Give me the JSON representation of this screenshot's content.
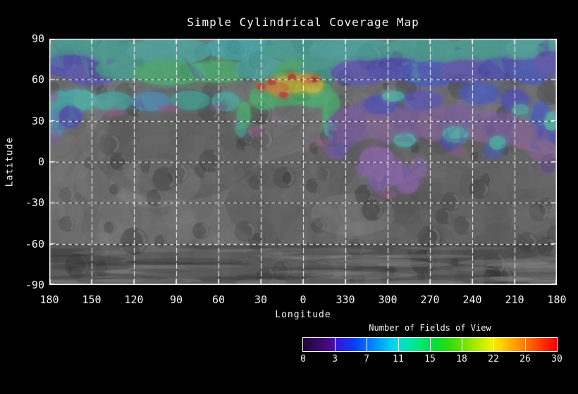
{
  "page": {
    "background": "#000000",
    "text_color": "#f5f5f5"
  },
  "title": "Simple Cylindrical Coverage Map",
  "axes": {
    "x": {
      "label": "Longitude",
      "tick_labels": [
        "180",
        "150",
        "120",
        "90",
        "60",
        "30",
        "0",
        "330",
        "300",
        "270",
        "240",
        "210",
        "180"
      ]
    },
    "y": {
      "label": "Latitude",
      "tick_labels": [
        "90",
        "60",
        "30",
        "0",
        "-30",
        "-60",
        "-90"
      ]
    }
  },
  "colorbar": {
    "title": "Number of Fields of View",
    "tick_labels": [
      "0",
      "3",
      "7",
      "11",
      "15",
      "18",
      "22",
      "26",
      "30"
    ],
    "segments": 8,
    "gradient_stops": [
      {
        "p": 0,
        "c": "#200538"
      },
      {
        "p": 11,
        "c": "#4c0b8c"
      },
      {
        "p": 13,
        "c": "#3517d6"
      },
      {
        "p": 20,
        "c": "#0b3cf2"
      },
      {
        "p": 25,
        "c": "#0070ff"
      },
      {
        "p": 31,
        "c": "#00aaff"
      },
      {
        "p": 36,
        "c": "#00d8ea"
      },
      {
        "p": 41,
        "c": "#00e6b2"
      },
      {
        "p": 47,
        "c": "#00e470"
      },
      {
        "p": 52,
        "c": "#06df38"
      },
      {
        "p": 57,
        "c": "#2edb10"
      },
      {
        "p": 62.5,
        "c": "#66e000"
      },
      {
        "p": 68,
        "c": "#a8ea00"
      },
      {
        "p": 74,
        "c": "#eef200"
      },
      {
        "p": 78,
        "c": "#ffd400"
      },
      {
        "p": 84,
        "c": "#ff9900"
      },
      {
        "p": 89,
        "c": "#ff6a00"
      },
      {
        "p": 94,
        "c": "#ff3300"
      },
      {
        "p": 100,
        "c": "#fb0000"
      }
    ]
  },
  "map": {
    "projection": "simple cylindrical",
    "grid_spacing_deg": 30,
    "gridline_color": "#ffffff",
    "frame_color": "#ffffff",
    "terrain_base_color": "#6d6d6d",
    "overlay_alpha": 0.62,
    "palette": {
      "teal": "#3cb4a4",
      "teal2": "#46bcb4",
      "cyan": "#3fc4c4",
      "cyan2": "#49ccc0",
      "cyanblue": "#4b9ed0",
      "green": "#41c472",
      "blue": "#4747cc",
      "blue2": "#4156d8",
      "indigo": "#5b51cc",
      "purple": "#7c58ac",
      "purpleM": "#8c64a0",
      "purpleblob": "#9a66c6",
      "mag": "#a85a9a",
      "yellow": "#e6df35",
      "orange": "#f09a2c",
      "red": "#e23222"
    }
  },
  "chart_data": {
    "type": "heatmap",
    "title": "Simple Cylindrical Coverage Map",
    "xlabel": "Longitude",
    "ylabel": "Latitude",
    "x_ticks_deg": [
      180,
      150,
      120,
      90,
      60,
      30,
      0,
      330,
      300,
      270,
      240,
      210,
      180
    ],
    "y_ticks_deg": [
      90,
      60,
      30,
      0,
      -30,
      -60,
      -90
    ],
    "grid": "dashed white lines every 30 degrees",
    "legend": {
      "label": "Number of Fields of View",
      "ticks": [
        0,
        3,
        7,
        11,
        15,
        18,
        22,
        26,
        30
      ],
      "palette": "rainbow"
    },
    "coverage_summary": [
      {
        "lat": "60..90",
        "lon": "all",
        "fov": "7-15",
        "appearance": "teal/cyan band with blue, indigo and green mosaic patches"
      },
      {
        "lat": "25..60",
        "lon": "180..45 (west)",
        "fov": "8-13",
        "appearance": "cyan/blue coverage above uncovered gray dome"
      },
      {
        "lat": "40..62",
        "lon": "35..340",
        "fov": "18-30",
        "appearance": "yellow-orange-red hotspot with green halo and two descending arms around a gray gap"
      },
      {
        "lat": "0..55",
        "lon": "345..185 (east)",
        "fov": "1-8",
        "appearance": "purple/violet field with blue and cyan patches"
      },
      {
        "lat": "-30..0",
        "lon": "320..275",
        "fov": "1-3",
        "appearance": "purple blob extending south of the equator"
      },
      {
        "lat": "-90..0 elsewhere",
        "lon": "all",
        "fov": 0,
        "appearance": "uncovered grayscale terrain with craters and streaks"
      }
    ],
    "coverage_blobs": [
      [
        150,
        82,
        35,
        10,
        "teal"
      ],
      [
        95,
        81,
        30,
        10,
        "teal2"
      ],
      [
        40,
        83,
        30,
        9,
        "cyan"
      ],
      [
        0,
        82,
        28,
        9,
        "teal"
      ],
      [
        325,
        82,
        30,
        9,
        "teal2"
      ],
      [
        275,
        81,
        30,
        10,
        "teal"
      ],
      [
        230,
        82,
        28,
        9,
        "teal"
      ],
      [
        195,
        83,
        22,
        9,
        "teal2"
      ],
      [
        165,
        70,
        20,
        8,
        "blue"
      ],
      [
        150,
        64,
        18,
        8,
        "indigo"
      ],
      [
        125,
        68,
        22,
        8,
        "teal"
      ],
      [
        95,
        65,
        25,
        9,
        "green"
      ],
      [
        60,
        66,
        22,
        8,
        "green"
      ],
      [
        30,
        68,
        18,
        8,
        "teal2"
      ],
      [
        5,
        66,
        15,
        8,
        "green"
      ],
      [
        345,
        67,
        18,
        8,
        "teal"
      ],
      [
        320,
        65,
        20,
        9,
        "indigo"
      ],
      [
        295,
        68,
        20,
        8,
        "blue"
      ],
      [
        270,
        64,
        20,
        9,
        "blue2"
      ],
      [
        245,
        66,
        18,
        8,
        "indigo"
      ],
      [
        220,
        68,
        16,
        8,
        "blue"
      ],
      [
        198,
        66,
        14,
        9,
        "blue2"
      ],
      [
        186,
        72,
        10,
        9,
        "indigo"
      ],
      [
        160,
        45,
        12,
        8,
        "cyan"
      ],
      [
        135,
        44,
        14,
        7,
        "teal2"
      ],
      [
        108,
        44,
        14,
        7,
        "cyanblue"
      ],
      [
        80,
        45,
        14,
        7,
        "teal"
      ],
      [
        55,
        44,
        10,
        7,
        "teal2"
      ],
      [
        172,
        40,
        10,
        12,
        "cyan"
      ],
      [
        176,
        28,
        7,
        9,
        "cyanblue"
      ],
      [
        165,
        33,
        8,
        8,
        "blue"
      ],
      [
        155,
        45,
        8,
        7,
        "cyan2"
      ],
      [
        178,
        18,
        5,
        6,
        "purple",
        0.5
      ],
      [
        42,
        34,
        5,
        10,
        "green"
      ],
      [
        44,
        24,
        4,
        6,
        "teal2",
        0.7
      ],
      [
        12,
        52,
        22,
        11,
        "green"
      ],
      [
        28,
        47,
        10,
        9,
        "green"
      ],
      [
        352,
        50,
        13,
        10,
        "green"
      ],
      [
        340,
        42,
        6,
        9,
        "green"
      ],
      [
        8,
        57,
        14,
        6,
        "yellow"
      ],
      [
        354,
        56,
        8,
        5,
        "yellow"
      ],
      [
        18,
        54,
        8,
        4,
        "orange"
      ],
      [
        357,
        60,
        6,
        3,
        "orange"
      ],
      [
        22,
        58,
        3,
        2,
        "red"
      ],
      [
        8,
        62,
        3,
        2,
        "red"
      ],
      [
        352,
        60,
        3,
        2,
        "red"
      ],
      [
        14,
        49,
        3,
        2,
        "red"
      ],
      [
        30,
        55,
        3,
        2,
        "red"
      ],
      [
        342,
        32,
        4,
        9,
        "green"
      ],
      [
        341,
        23,
        4,
        5,
        "cyan2"
      ],
      [
        330,
        25,
        12,
        14,
        "purple"
      ],
      [
        318,
        30,
        14,
        13,
        "purple"
      ],
      [
        300,
        28,
        16,
        14,
        "purpleM"
      ],
      [
        282,
        30,
        14,
        13,
        "purple"
      ],
      [
        265,
        28,
        14,
        13,
        "purpleM"
      ],
      [
        248,
        30,
        13,
        12,
        "purple"
      ],
      [
        232,
        26,
        12,
        12,
        "purpleM"
      ],
      [
        218,
        24,
        12,
        12,
        "purple"
      ],
      [
        200,
        22,
        12,
        12,
        "purpleM"
      ],
      [
        188,
        18,
        8,
        11,
        "purple"
      ],
      [
        336,
        10,
        8,
        8,
        "purple"
      ],
      [
        305,
        42,
        12,
        7,
        "blue"
      ],
      [
        275,
        45,
        14,
        7,
        "indigo"
      ],
      [
        235,
        50,
        14,
        8,
        "blue2"
      ],
      [
        210,
        45,
        10,
        8,
        "blue"
      ],
      [
        192,
        35,
        7,
        9,
        "blue2"
      ],
      [
        255,
        15,
        8,
        7,
        "blue",
        0.6
      ],
      [
        225,
        8,
        7,
        6,
        "blue2",
        0.5
      ],
      [
        185,
        20,
        8,
        12,
        "blue"
      ],
      [
        288,
        16,
        8,
        5,
        "cyan2"
      ],
      [
        252,
        20,
        9,
        6,
        "cyan2"
      ],
      [
        222,
        14,
        6,
        5,
        "cyan2"
      ],
      [
        206,
        38,
        6,
        4,
        "teal2"
      ],
      [
        184,
        28,
        5,
        5,
        "cyan2"
      ],
      [
        296,
        48,
        8,
        4,
        "cyan2"
      ],
      [
        182,
        33,
        5,
        4,
        "cyan2"
      ],
      [
        308,
        2,
        12,
        9,
        "purpleblob"
      ],
      [
        296,
        -8,
        11,
        9,
        "purpleblob"
      ],
      [
        286,
        -16,
        8,
        7,
        "purpleblob"
      ],
      [
        306,
        -14,
        8,
        7,
        "purpleblob",
        0.7
      ],
      [
        316,
        -5,
        6,
        6,
        "purpleblob",
        0.6
      ],
      [
        278,
        -5,
        6,
        8,
        "purpleblob",
        0.55
      ],
      [
        186,
        -3,
        7,
        6,
        "purple",
        0.5
      ],
      [
        190,
        8,
        10,
        8,
        "purpleM"
      ],
      [
        134,
        36,
        7,
        3,
        "mag",
        0.5
      ],
      [
        95,
        39,
        8,
        3,
        "mag",
        0.45
      ],
      [
        60,
        40,
        6,
        3,
        "mag",
        0.4
      ],
      [
        35,
        22,
        5,
        4,
        "mag",
        0.5
      ],
      [
        347,
        14,
        5,
        3,
        "mag",
        0.5
      ],
      [
        300,
        -24,
        7,
        3,
        "mag",
        0.45
      ],
      [
        250,
        8,
        6,
        3,
        "mag",
        0.4
      ],
      [
        205,
        12,
        5,
        3,
        "mag",
        0.4
      ],
      [
        177,
        48,
        3,
        5,
        "mag",
        0.4
      ],
      [
        18,
        30,
        4,
        5,
        "mag",
        0.45
      ]
    ],
    "coverage_hole": [
      9,
      28,
      11,
      12
    ]
  }
}
